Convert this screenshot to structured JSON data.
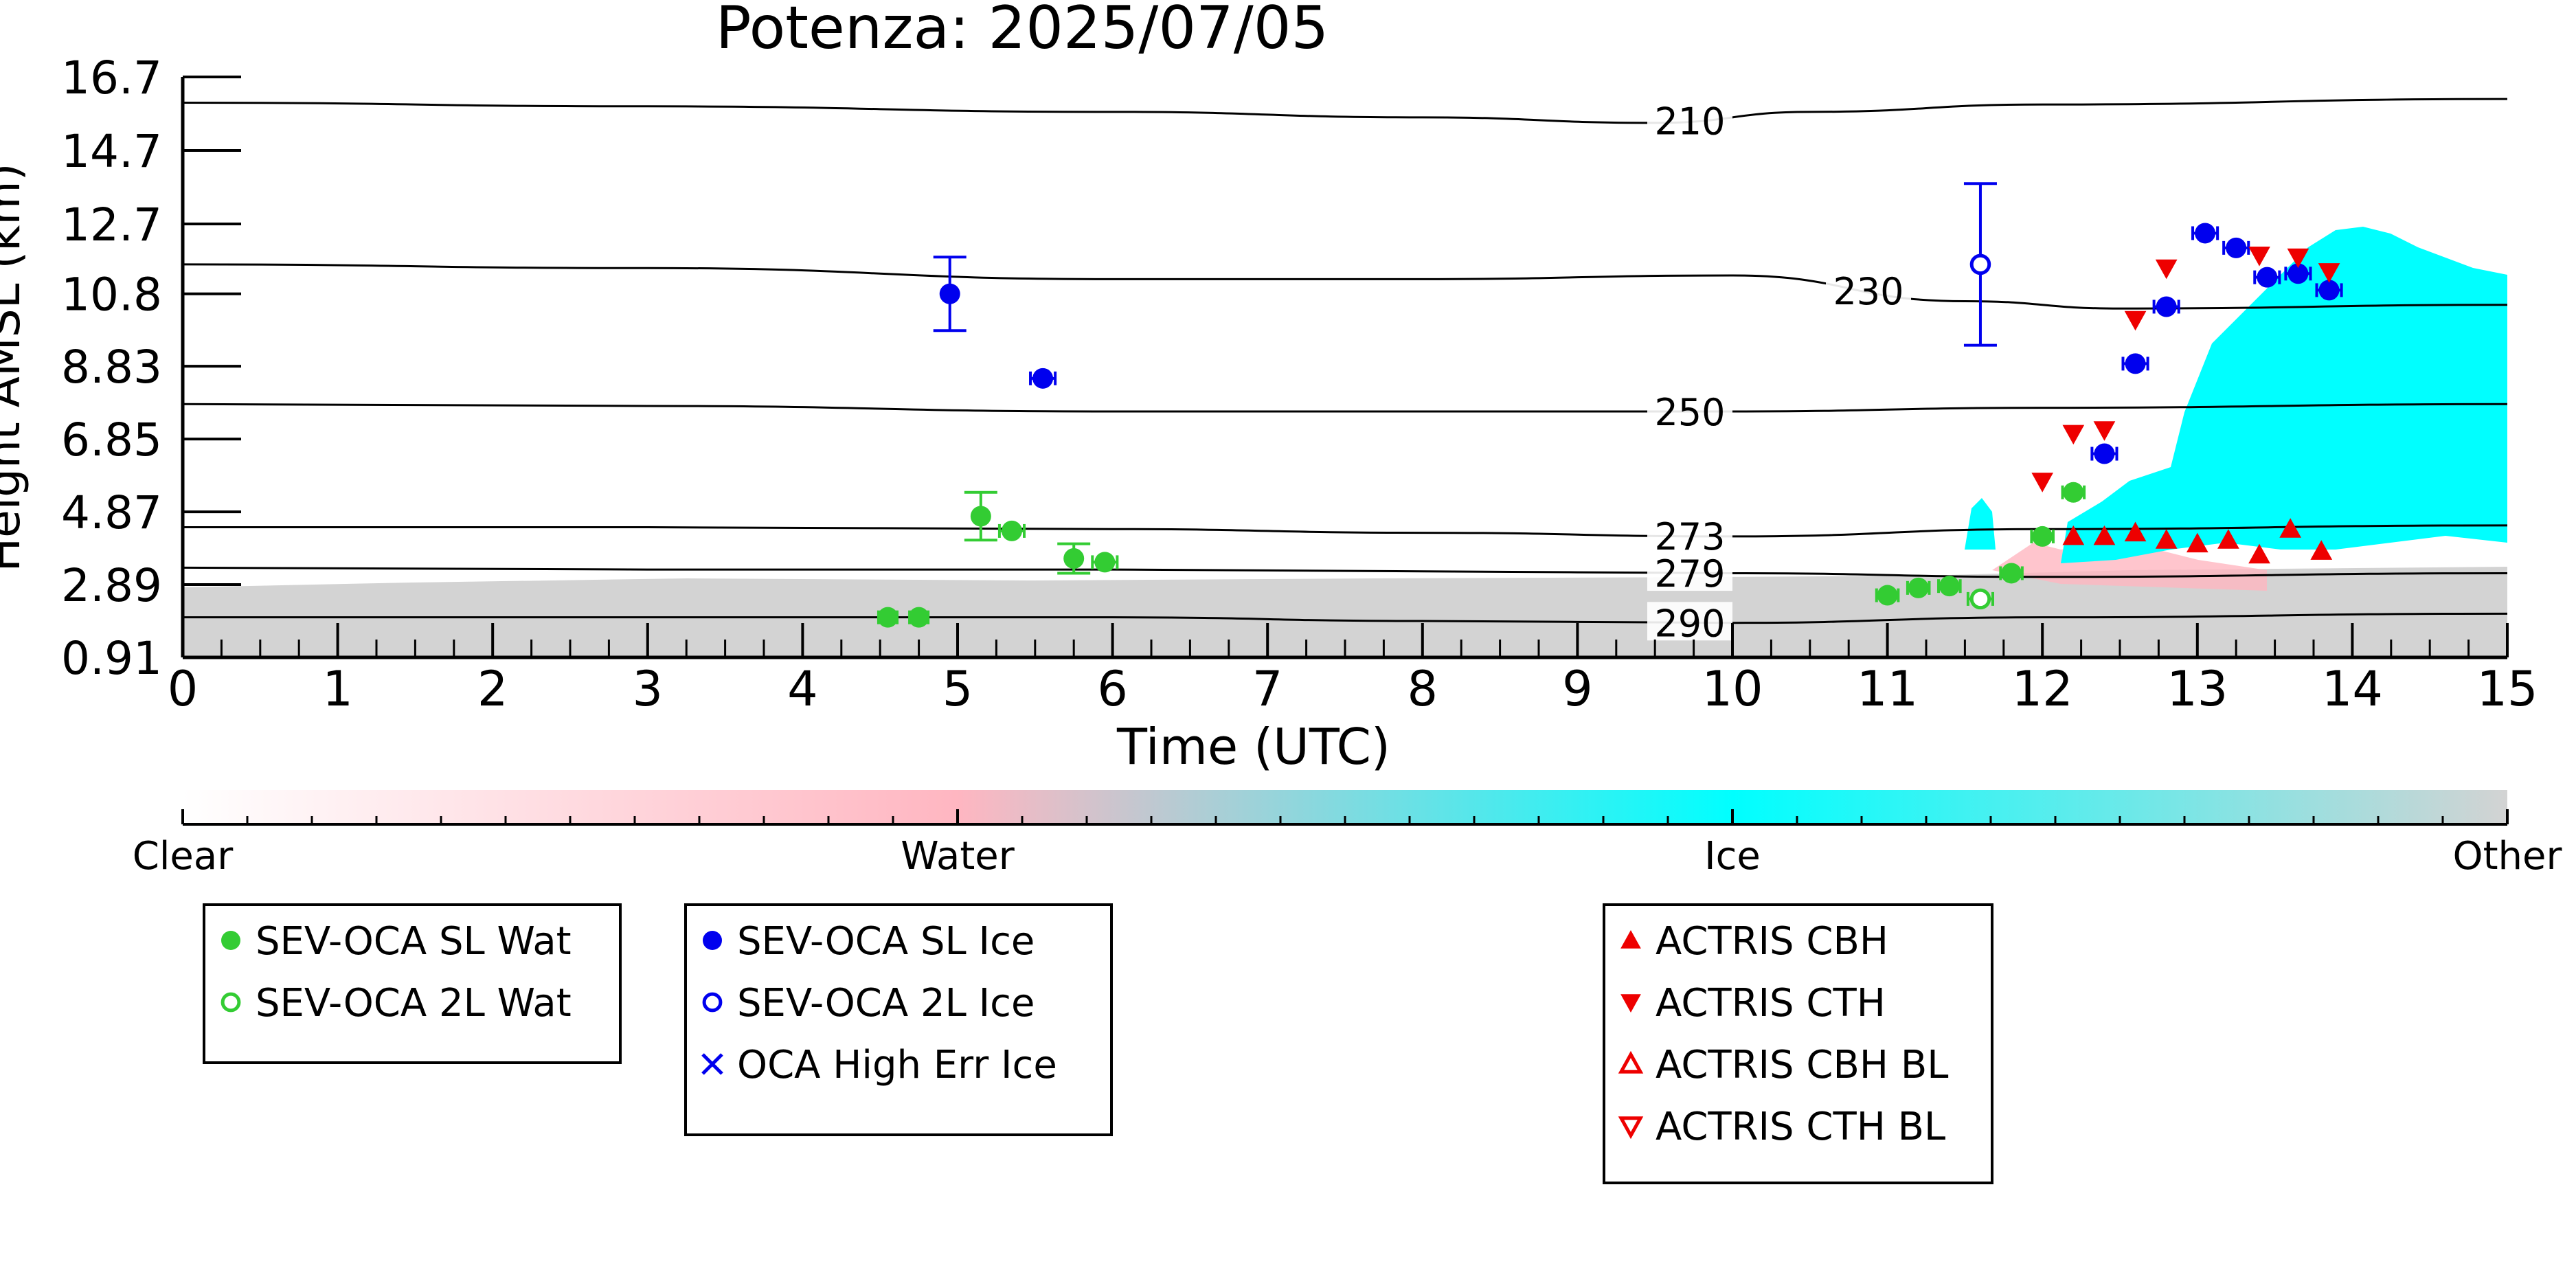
{
  "chart_data": {
    "type": "scatter",
    "title": "Potenza: 2025/07/05",
    "xlabel": "Time (UTC)",
    "ylabel": "Height AMSL (km)",
    "xlim": [
      0,
      15
    ],
    "ylim": [
      0.91,
      16.7
    ],
    "x_ticks": [
      "0",
      "1",
      "2",
      "3",
      "4",
      "5",
      "6",
      "7",
      "8",
      "9",
      "10",
      "11",
      "12",
      "13",
      "14",
      "15"
    ],
    "y_ticks": [
      "0.91",
      "2.89",
      "4.87",
      "6.85",
      "8.83",
      "10.8",
      "12.7",
      "14.7",
      "16.7"
    ],
    "isotherms": [
      {
        "label": "210",
        "points": [
          [
            0,
            16.0
          ],
          [
            3,
            15.9
          ],
          [
            6,
            15.75
          ],
          [
            8,
            15.6
          ],
          [
            9.5,
            15.45
          ],
          [
            10.5,
            15.75
          ],
          [
            12,
            15.95
          ],
          [
            15,
            16.1
          ]
        ]
      },
      {
        "label": "230",
        "points": [
          [
            0,
            11.6
          ],
          [
            3,
            11.5
          ],
          [
            6,
            11.2
          ],
          [
            8,
            11.2
          ],
          [
            10,
            11.3
          ],
          [
            11.5,
            10.6
          ],
          [
            12.5,
            10.4
          ],
          [
            15,
            10.5
          ]
        ]
      },
      {
        "label": "250",
        "points": [
          [
            0,
            7.8
          ],
          [
            3,
            7.75
          ],
          [
            6,
            7.6
          ],
          [
            8,
            7.6
          ],
          [
            10,
            7.6
          ],
          [
            12,
            7.7
          ],
          [
            15,
            7.8
          ]
        ]
      },
      {
        "label": "273",
        "points": [
          [
            0,
            4.45
          ],
          [
            3,
            4.45
          ],
          [
            6,
            4.4
          ],
          [
            8,
            4.3
          ],
          [
            10,
            4.2
          ],
          [
            12,
            4.4
          ],
          [
            15,
            4.5
          ]
        ]
      },
      {
        "label": "279",
        "points": [
          [
            0,
            3.35
          ],
          [
            3,
            3.3
          ],
          [
            6,
            3.3
          ],
          [
            8,
            3.25
          ],
          [
            10,
            3.2
          ],
          [
            12,
            3.1
          ],
          [
            15,
            3.2
          ]
        ]
      },
      {
        "label": "290",
        "points": [
          [
            0,
            2.0
          ],
          [
            3,
            2.0
          ],
          [
            6,
            2.0
          ],
          [
            8,
            1.9
          ],
          [
            10,
            1.85
          ],
          [
            12,
            2.0
          ],
          [
            15,
            2.1
          ]
        ]
      }
    ],
    "colorbar": {
      "ticks": [
        "Clear",
        "Water",
        "Ice",
        "Other"
      ]
    },
    "series": [
      {
        "name": "SEV-OCA SL Wat",
        "marker": "filled-circle",
        "color": "#33cc33",
        "points": [
          {
            "x": 4.55,
            "y": 2.0,
            "xerr": 0.06
          },
          {
            "x": 4.75,
            "y": 2.0,
            "xerr": 0.06
          },
          {
            "x": 5.15,
            "y": 4.75,
            "yerr": 0.65
          },
          {
            "x": 5.35,
            "y": 4.35,
            "xerr": 0.08
          },
          {
            "x": 5.75,
            "y": 3.6,
            "yerr": 0.4
          },
          {
            "x": 5.95,
            "y": 3.5,
            "xerr": 0.08
          },
          {
            "x": 11.0,
            "y": 2.6,
            "xerr": 0.07
          },
          {
            "x": 11.2,
            "y": 2.8,
            "xerr": 0.07
          },
          {
            "x": 11.4,
            "y": 2.85,
            "xerr": 0.07
          },
          {
            "x": 11.8,
            "y": 3.2,
            "xerr": 0.07
          },
          {
            "x": 12.0,
            "y": 4.2,
            "xerr": 0.07
          },
          {
            "x": 12.2,
            "y": 5.4,
            "xerr": 0.07
          }
        ]
      },
      {
        "name": "SEV-OCA 2L Wat",
        "marker": "open-circle",
        "color": "#33cc33",
        "points": [
          {
            "x": 11.6,
            "y": 2.5,
            "xerr": 0.08
          }
        ]
      },
      {
        "name": "SEV-OCA SL Ice",
        "marker": "filled-circle",
        "color": "#0000ee",
        "points": [
          {
            "x": 4.95,
            "y": 10.8,
            "yerr": 1.0
          },
          {
            "x": 5.55,
            "y": 8.5,
            "xerr": 0.08
          },
          {
            "x": 12.4,
            "y": 6.45,
            "xerr": 0.08
          },
          {
            "x": 12.6,
            "y": 8.9,
            "xerr": 0.08
          },
          {
            "x": 12.8,
            "y": 10.45,
            "xerr": 0.08
          },
          {
            "x": 13.05,
            "y": 12.45,
            "xerr": 0.08
          },
          {
            "x": 13.25,
            "y": 12.05,
            "xerr": 0.08
          },
          {
            "x": 13.45,
            "y": 11.25,
            "xerr": 0.08
          },
          {
            "x": 13.65,
            "y": 11.35,
            "xerr": 0.08
          },
          {
            "x": 13.85,
            "y": 10.9,
            "xerr": 0.08
          }
        ]
      },
      {
        "name": "SEV-OCA 2L Ice",
        "marker": "open-circle",
        "color": "#0000ee",
        "points": [
          {
            "x": 11.6,
            "y": 11.6,
            "yerr": 2.2
          }
        ]
      },
      {
        "name": "OCA High Err Ice",
        "marker": "x",
        "color": "#0000ee",
        "points": []
      },
      {
        "name": "ACTRIS CBH",
        "marker": "triangle-up",
        "color": "#ee0000",
        "points": [
          {
            "x": 12.2,
            "y": 4.2
          },
          {
            "x": 12.4,
            "y": 4.2
          },
          {
            "x": 12.6,
            "y": 4.3
          },
          {
            "x": 12.8,
            "y": 4.1
          },
          {
            "x": 13.0,
            "y": 4.0
          },
          {
            "x": 13.2,
            "y": 4.1
          },
          {
            "x": 13.4,
            "y": 3.7
          },
          {
            "x": 13.6,
            "y": 4.4
          },
          {
            "x": 13.8,
            "y": 3.8
          }
        ]
      },
      {
        "name": "ACTRIS CTH",
        "marker": "triangle-down",
        "color": "#ee0000",
        "points": [
          {
            "x": 12.0,
            "y": 5.7
          },
          {
            "x": 12.2,
            "y": 7.0
          },
          {
            "x": 12.4,
            "y": 7.1
          },
          {
            "x": 12.6,
            "y": 10.1
          },
          {
            "x": 12.8,
            "y": 11.5
          },
          {
            "x": 13.4,
            "y": 11.85
          },
          {
            "x": 13.65,
            "y": 11.8
          },
          {
            "x": 13.85,
            "y": 11.4
          }
        ]
      },
      {
        "name": "ACTRIS CBH BL",
        "marker": "open-triangle-up",
        "color": "#ee0000",
        "points": []
      },
      {
        "name": "ACTRIS CTH BL",
        "marker": "open-triangle-down",
        "color": "#ee0000",
        "points": []
      }
    ],
    "legends": [
      {
        "items": [
          "SEV-OCA SL Wat",
          "SEV-OCA 2L Wat"
        ]
      },
      {
        "items": [
          "SEV-OCA SL Ice",
          "SEV-OCA 2L Ice",
          "OCA High Err Ice"
        ]
      },
      {
        "items": [
          "ACTRIS CBH",
          "ACTRIS CTH",
          "ACTRIS CBH BL",
          "ACTRIS CTH BL"
        ]
      }
    ],
    "colors": {
      "clear": "#ffffff",
      "water": "#ffb6c1",
      "ice": "#00ffff",
      "other": "#d3d3d3",
      "sev_water": "#33cc33",
      "sev_ice": "#0000ee",
      "actris": "#ee0000"
    }
  }
}
